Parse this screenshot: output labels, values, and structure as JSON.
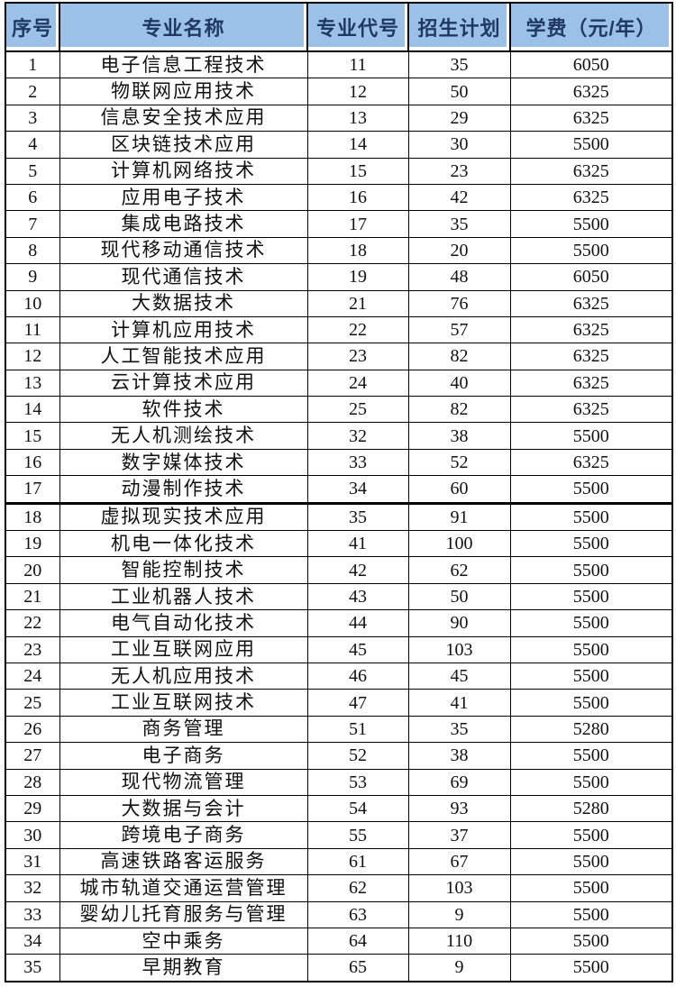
{
  "colors": {
    "header_bg": "#9BC2E6",
    "header_text": "#1F3864",
    "body_text": "#111111",
    "border": "#000000",
    "page_bg": "#FFFFFF"
  },
  "table": {
    "columns": [
      {
        "key": "index",
        "label": "序号"
      },
      {
        "key": "name",
        "label": "专业名称"
      },
      {
        "key": "code",
        "label": "专业代号"
      },
      {
        "key": "plan",
        "label": "招生计划"
      },
      {
        "key": "fee",
        "label": "学费（元/年）"
      }
    ],
    "thick_divider_after_row": 17,
    "rows": [
      {
        "index": 1,
        "name": "电子信息工程技术",
        "code": 11,
        "plan": 35,
        "fee": 6050
      },
      {
        "index": 2,
        "name": "物联网应用技术",
        "code": 12,
        "plan": 50,
        "fee": 6325
      },
      {
        "index": 3,
        "name": "信息安全技术应用",
        "code": 13,
        "plan": 29,
        "fee": 6325
      },
      {
        "index": 4,
        "name": "区块链技术应用",
        "code": 14,
        "plan": 30,
        "fee": 5500
      },
      {
        "index": 5,
        "name": "计算机网络技术",
        "code": 15,
        "plan": 23,
        "fee": 6325
      },
      {
        "index": 6,
        "name": "应用电子技术",
        "code": 16,
        "plan": 42,
        "fee": 6325
      },
      {
        "index": 7,
        "name": "集成电路技术",
        "code": 17,
        "plan": 35,
        "fee": 5500
      },
      {
        "index": 8,
        "name": "现代移动通信技术",
        "code": 18,
        "plan": 20,
        "fee": 5500
      },
      {
        "index": 9,
        "name": "现代通信技术",
        "code": 19,
        "plan": 48,
        "fee": 6050
      },
      {
        "index": 10,
        "name": "大数据技术",
        "code": 21,
        "plan": 76,
        "fee": 6325
      },
      {
        "index": 11,
        "name": "计算机应用技术",
        "code": 22,
        "plan": 57,
        "fee": 6325
      },
      {
        "index": 12,
        "name": "人工智能技术应用",
        "code": 23,
        "plan": 82,
        "fee": 6325
      },
      {
        "index": 13,
        "name": "云计算技术应用",
        "code": 24,
        "plan": 40,
        "fee": 6325
      },
      {
        "index": 14,
        "name": "软件技术",
        "code": 25,
        "plan": 82,
        "fee": 6325
      },
      {
        "index": 15,
        "name": "无人机测绘技术",
        "code": 32,
        "plan": 38,
        "fee": 5500
      },
      {
        "index": 16,
        "name": "数字媒体技术",
        "code": 33,
        "plan": 52,
        "fee": 6325
      },
      {
        "index": 17,
        "name": "动漫制作技术",
        "code": 34,
        "plan": 60,
        "fee": 5500
      },
      {
        "index": 18,
        "name": "虚拟现实技术应用",
        "code": 35,
        "plan": 91,
        "fee": 5500
      },
      {
        "index": 19,
        "name": "机电一体化技术",
        "code": 41,
        "plan": 100,
        "fee": 5500
      },
      {
        "index": 20,
        "name": "智能控制技术",
        "code": 42,
        "plan": 62,
        "fee": 5500
      },
      {
        "index": 21,
        "name": "工业机器人技术",
        "code": 43,
        "plan": 50,
        "fee": 5500
      },
      {
        "index": 22,
        "name": "电气自动化技术",
        "code": 44,
        "plan": 90,
        "fee": 5500
      },
      {
        "index": 23,
        "name": "工业互联网应用",
        "code": 45,
        "plan": 103,
        "fee": 5500
      },
      {
        "index": 24,
        "name": "无人机应用技术",
        "code": 46,
        "plan": 45,
        "fee": 5500
      },
      {
        "index": 25,
        "name": "工业互联网技术",
        "code": 47,
        "plan": 41,
        "fee": 5500
      },
      {
        "index": 26,
        "name": "商务管理",
        "code": 51,
        "plan": 35,
        "fee": 5280
      },
      {
        "index": 27,
        "name": "电子商务",
        "code": 52,
        "plan": 38,
        "fee": 5500
      },
      {
        "index": 28,
        "name": "现代物流管理",
        "code": 53,
        "plan": 69,
        "fee": 5500
      },
      {
        "index": 29,
        "name": "大数据与会计",
        "code": 54,
        "plan": 93,
        "fee": 5280
      },
      {
        "index": 30,
        "name": "跨境电子商务",
        "code": 55,
        "plan": 37,
        "fee": 5500
      },
      {
        "index": 31,
        "name": "高速铁路客运服务",
        "code": 61,
        "plan": 67,
        "fee": 5500
      },
      {
        "index": 32,
        "name": "城市轨道交通运营管理",
        "code": 62,
        "plan": 103,
        "fee": 5500
      },
      {
        "index": 33,
        "name": "婴幼儿托育服务与管理",
        "code": 63,
        "plan": 9,
        "fee": 5500
      },
      {
        "index": 34,
        "name": "空中乘务",
        "code": 64,
        "plan": 110,
        "fee": 5500
      },
      {
        "index": 35,
        "name": "早期教育",
        "code": 65,
        "plan": 9,
        "fee": 5500
      }
    ]
  }
}
